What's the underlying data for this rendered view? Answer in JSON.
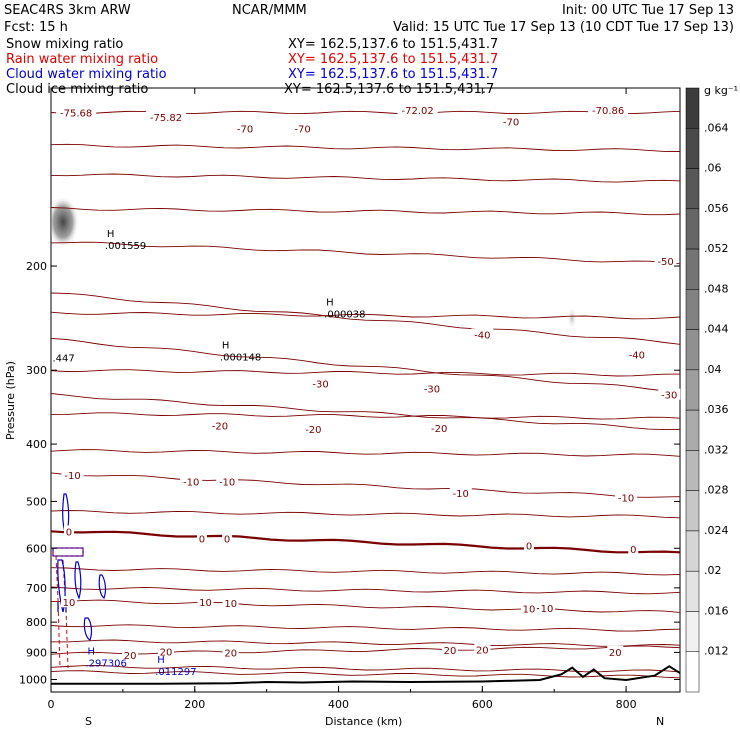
{
  "header": {
    "left1": "SEAC4RS  3km ARW",
    "left2": "Fcst:    15 h",
    "center": "NCAR/MMM",
    "right1": "Init: 00 UTC Tue 17 Sep 13",
    "right2": "Valid: 15 UTC Tue 17 Sep 13 (10 CDT Tue 17 Sep 13)"
  },
  "fields": [
    {
      "name": "Snow mixing ratio",
      "xy": "XY= 162.5,137.6 to 151.5,431.7",
      "color": "#000000"
    },
    {
      "name": "Rain water mixing ratio",
      "xy": "XY= 162.5,137.6 to 151.5,431.7",
      "color": "#e00000"
    },
    {
      "name": "Cloud water mixing ratio",
      "xy": "XY= 162.5,137.6 to 151.5,431.7",
      "color": "#0000d0"
    },
    {
      "name": "Cloud ice mixing ratio",
      "xy": "XY= 162.5,137.6 to 151.5,431.7",
      "color": "#000000"
    }
  ],
  "colors": {
    "temperature": "#7a0000",
    "terrain": "#000000",
    "rain": "#e00000",
    "cloud_water": "#0000d0"
  },
  "chart_data": {
    "type": "line",
    "xlabel": "Distance (km)",
    "ylabel": "Pressure (hPa)",
    "xlim": [
      0,
      875
    ],
    "ylim": [
      1050,
      100
    ],
    "y_scale": "log",
    "x_ticks": [
      "0",
      "200",
      "400",
      "600",
      "800"
    ],
    "y_ticks": [
      "200",
      "300",
      "400",
      "500",
      "600",
      "700",
      "800",
      "900",
      "1000"
    ],
    "x_end_labels": {
      "left": "S",
      "right": "N"
    },
    "isotherm_labels": [
      {
        "x": 35,
        "p": 110,
        "t": "-75.68"
      },
      {
        "x": 160,
        "p": 112,
        "t": "-75.82"
      },
      {
        "x": 270,
        "p": 117,
        "t": "-70"
      },
      {
        "x": 350,
        "p": 117,
        "t": "-70"
      },
      {
        "x": 510,
        "p": 109,
        "t": "-72.02"
      },
      {
        "x": 640,
        "p": 114,
        "t": "-70"
      },
      {
        "x": 775,
        "p": 109,
        "t": "-70.86"
      },
      {
        "x": 855,
        "p": 196,
        "t": "-50"
      },
      {
        "x": 600,
        "p": 261,
        "t": "-40"
      },
      {
        "x": 815,
        "p": 282,
        "t": "-40"
      },
      {
        "x": 375,
        "p": 316,
        "t": "-30"
      },
      {
        "x": 530,
        "p": 322,
        "t": "-30"
      },
      {
        "x": 860,
        "p": 330,
        "t": "-30"
      },
      {
        "x": 235,
        "p": 372,
        "t": "-20"
      },
      {
        "x": 365,
        "p": 377,
        "t": "-20"
      },
      {
        "x": 540,
        "p": 376,
        "t": "-20"
      },
      {
        "x": 30,
        "p": 451,
        "t": "-10"
      },
      {
        "x": 195,
        "p": 463,
        "t": "-10"
      },
      {
        "x": 245,
        "p": 463,
        "t": "-10"
      },
      {
        "x": 570,
        "p": 484,
        "t": "-10"
      },
      {
        "x": 800,
        "p": 492,
        "t": "-10"
      },
      {
        "x": 25,
        "p": 562,
        "t": "0"
      },
      {
        "x": 210,
        "p": 578,
        "t": "0"
      },
      {
        "x": 245,
        "p": 578,
        "t": "0"
      },
      {
        "x": 665,
        "p": 594,
        "t": "0"
      },
      {
        "x": 810,
        "p": 602,
        "t": "0"
      },
      {
        "x": 25,
        "p": 740,
        "t": "10"
      },
      {
        "x": 215,
        "p": 739,
        "t": "10"
      },
      {
        "x": 250,
        "p": 742,
        "t": "10"
      },
      {
        "x": 665,
        "p": 758,
        "t": "10"
      },
      {
        "x": 690,
        "p": 757,
        "t": "10"
      },
      {
        "x": 250,
        "p": 900,
        "t": "20"
      },
      {
        "x": 555,
        "p": 892,
        "t": "20"
      },
      {
        "x": 600,
        "p": 890,
        "t": "20"
      },
      {
        "x": 785,
        "p": 898,
        "t": "20"
      },
      {
        "x": 160,
        "p": 896,
        "t": "20"
      },
      {
        "x": 110,
        "p": 910,
        "t": "20"
      }
    ],
    "isotherms": [
      {
        "t": "-70",
        "p0": 110,
        "p1": 110
      },
      {
        "t": "-60",
        "p0": 140,
        "p1": 144
      },
      {
        "t": "-50",
        "p0": 182,
        "p1": 198
      },
      {
        "t": "-40",
        "p0": 222,
        "p1": 270
      },
      {
        "t": "-30",
        "p0": 266,
        "p1": 325
      },
      {
        "t": "-20",
        "p0": 330,
        "p1": 378
      },
      {
        "t": "-10",
        "p0": 448,
        "p1": 493
      },
      {
        "t": "0",
        "p0": 560,
        "p1": 612
      },
      {
        "t": "10",
        "p0": 735,
        "p1": 770
      },
      {
        "t": "20",
        "p0": 905,
        "p1": 880
      }
    ],
    "extra_isotherm_levels": [
      125,
      160,
      240,
      300,
      355,
      410,
      520,
      650,
      700,
      810,
      860,
      950,
      970
    ],
    "terrain": [
      {
        "x": 0,
        "p": 1017
      },
      {
        "x": 150,
        "p": 1017
      },
      {
        "x": 250,
        "p": 1015
      },
      {
        "x": 300,
        "p": 1010
      },
      {
        "x": 350,
        "p": 1012
      },
      {
        "x": 420,
        "p": 1008
      },
      {
        "x": 500,
        "p": 1010
      },
      {
        "x": 600,
        "p": 1008
      },
      {
        "x": 680,
        "p": 1002
      },
      {
        "x": 710,
        "p": 980
      },
      {
        "x": 725,
        "p": 955
      },
      {
        "x": 740,
        "p": 990
      },
      {
        "x": 755,
        "p": 962
      },
      {
        "x": 770,
        "p": 995
      },
      {
        "x": 800,
        "p": 1002
      },
      {
        "x": 840,
        "p": 985
      },
      {
        "x": 860,
        "p": 950
      },
      {
        "x": 875,
        "p": 975
      }
    ],
    "max_labels": [
      {
        "x": 75,
        "p": 180,
        "h": "H",
        "v": ".001559",
        "color": "#000000"
      },
      {
        "x": 380,
        "p": 235,
        "h": "H",
        "v": ".000038",
        "color": "#000000"
      },
      {
        "x": 235,
        "p": 278,
        "h": "H",
        "v": ".000148",
        "color": "#000000"
      },
      {
        "x": 48,
        "p": 915,
        "h": "H",
        "v": ".297306",
        "color": "#0000d0"
      },
      {
        "x": 145,
        "p": 945,
        "h": "H",
        "v": ".011297",
        "color": "#0000d0"
      }
    ],
    "corner_label": {
      "x": 2,
      "p": 290,
      "v": ".447"
    },
    "colorbar": {
      "unit": "g kg⁻¹",
      "labels": [
        ".064",
        ".06",
        ".056",
        ".052",
        ".048",
        ".044",
        ".04",
        ".036",
        ".032",
        ".028",
        ".024",
        ".02",
        ".016",
        ".012"
      ]
    }
  }
}
